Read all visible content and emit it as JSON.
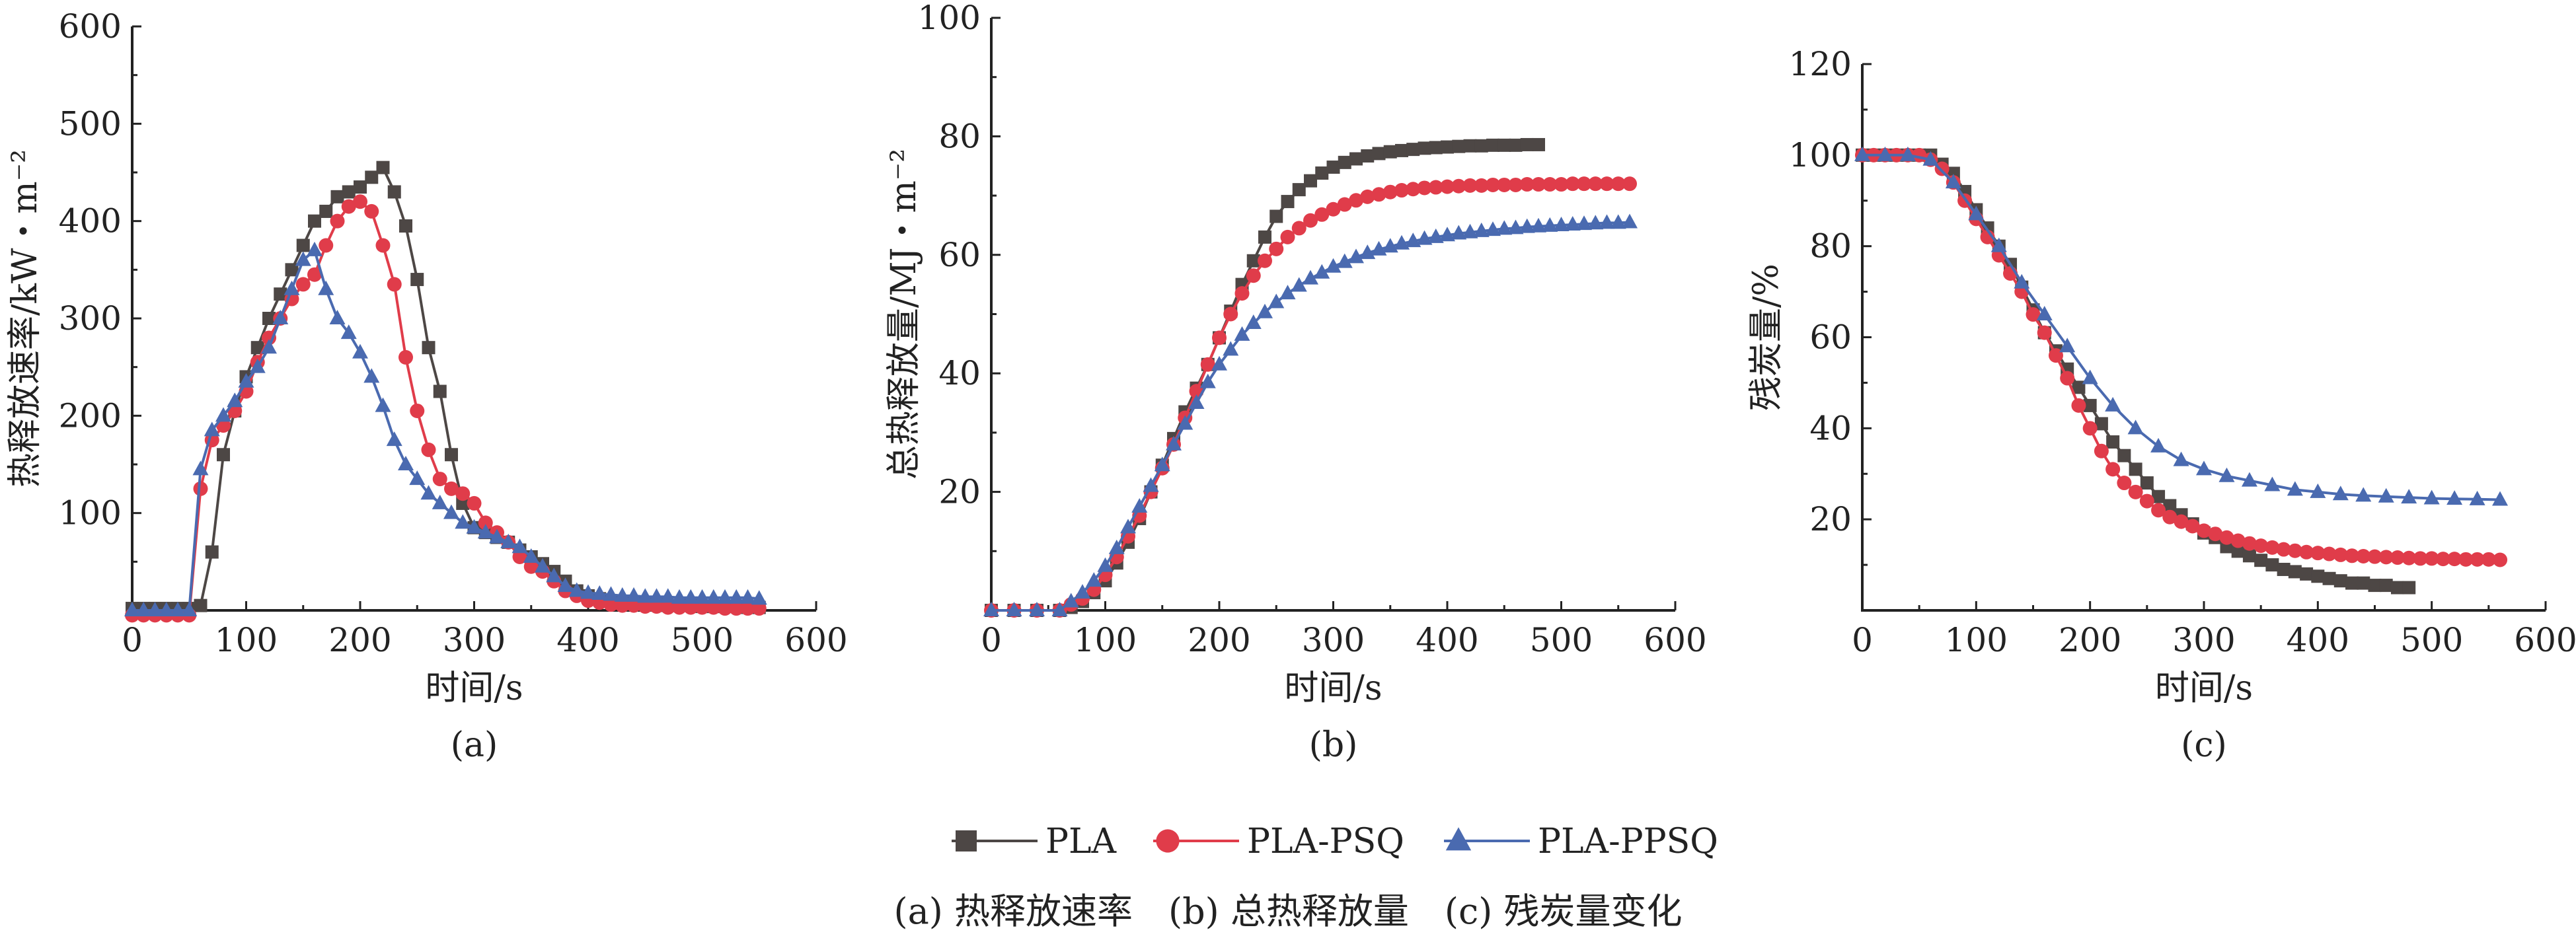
{
  "colors": {
    "PLA": "#4d4745",
    "PLA-PSQ": "#e03c4a",
    "PLA-PPSQ": "#4a6ab0",
    "axis": "#222222"
  },
  "legend": [
    {
      "name": "PLA",
      "marker": "square"
    },
    {
      "name": "PLA-PSQ",
      "marker": "circle"
    },
    {
      "name": "PLA-PPSQ",
      "marker": "triangle"
    }
  ],
  "caption": "(a) 热释放速率　(b) 总热释放量　(c) 残炭量变化",
  "chart_data": [
    {
      "type": "line",
      "panel_label": "(a)",
      "xlabel": "时间/s",
      "ylabel": "热释放速率/kW・m⁻²",
      "xlim": [
        0,
        600
      ],
      "ylim": [
        0,
        600
      ],
      "xticks": [
        "0",
        "100",
        "200",
        "300",
        "400",
        "500",
        "600"
      ],
      "yticks": [
        "100",
        "200",
        "300",
        "400",
        "500",
        "600"
      ],
      "series": [
        {
          "name": "PLA",
          "x": [
            0,
            10,
            20,
            30,
            40,
            50,
            60,
            70,
            80,
            90,
            100,
            110,
            120,
            130,
            140,
            150,
            160,
            170,
            180,
            190,
            200,
            210,
            220,
            230,
            240,
            250,
            260,
            270,
            280,
            290,
            300,
            310,
            320,
            330,
            340,
            350,
            360,
            370,
            380,
            390,
            400,
            410,
            420,
            430,
            440,
            450,
            460,
            470,
            480,
            490,
            500,
            510,
            520,
            530,
            540,
            550
          ],
          "y": [
            2,
            2,
            2,
            2,
            2,
            2,
            5,
            60,
            160,
            205,
            240,
            270,
            300,
            325,
            350,
            375,
            400,
            410,
            425,
            430,
            435,
            445,
            455,
            430,
            395,
            340,
            270,
            225,
            160,
            110,
            85,
            80,
            75,
            70,
            62,
            55,
            48,
            40,
            30,
            20,
            15,
            12,
            10,
            9,
            8,
            7,
            6,
            5,
            5,
            5,
            4,
            4,
            4,
            4,
            3,
            3
          ]
        },
        {
          "name": "PLA-PSQ",
          "x": [
            0,
            10,
            20,
            30,
            40,
            50,
            60,
            70,
            80,
            90,
            100,
            110,
            120,
            130,
            140,
            150,
            160,
            170,
            180,
            190,
            200,
            210,
            220,
            230,
            240,
            250,
            260,
            270,
            280,
            290,
            300,
            310,
            320,
            330,
            340,
            350,
            360,
            370,
            380,
            390,
            400,
            410,
            420,
            430,
            440,
            450,
            460,
            470,
            480,
            490,
            500,
            510,
            520,
            530,
            540,
            550
          ],
          "y": [
            -5,
            -5,
            -5,
            -5,
            -5,
            -5,
            125,
            175,
            190,
            205,
            225,
            255,
            280,
            300,
            320,
            335,
            345,
            375,
            400,
            415,
            420,
            410,
            375,
            335,
            260,
            205,
            165,
            135,
            125,
            120,
            110,
            90,
            80,
            70,
            55,
            45,
            40,
            30,
            20,
            15,
            10,
            8,
            6,
            5,
            5,
            4,
            4,
            3,
            3,
            3,
            3,
            3,
            2,
            2,
            2,
            2
          ]
        },
        {
          "name": "PLA-PPSQ",
          "x": [
            0,
            10,
            20,
            30,
            40,
            50,
            60,
            70,
            80,
            90,
            100,
            110,
            120,
            130,
            140,
            150,
            160,
            170,
            180,
            190,
            200,
            210,
            220,
            230,
            240,
            250,
            260,
            270,
            280,
            290,
            300,
            310,
            320,
            330,
            340,
            350,
            360,
            370,
            380,
            390,
            400,
            410,
            420,
            430,
            440,
            450,
            460,
            470,
            480,
            490,
            500,
            510,
            520,
            530,
            540,
            550
          ],
          "y": [
            0,
            0,
            0,
            0,
            0,
            0,
            145,
            185,
            200,
            215,
            235,
            250,
            270,
            300,
            330,
            360,
            370,
            330,
            300,
            285,
            265,
            240,
            210,
            175,
            150,
            135,
            120,
            110,
            100,
            90,
            85,
            80,
            75,
            70,
            65,
            55,
            45,
            35,
            25,
            20,
            18,
            17,
            16,
            15,
            15,
            14,
            14,
            14,
            13,
            13,
            13,
            13,
            13,
            13,
            13,
            12
          ]
        }
      ]
    },
    {
      "type": "line",
      "panel_label": "(b)",
      "xlabel": "时间/s",
      "ylabel": "总热释放量/MJ・m⁻²",
      "xlim": [
        0,
        600
      ],
      "ylim": [
        0,
        100
      ],
      "xticks": [
        "0",
        "100",
        "200",
        "300",
        "400",
        "500",
        "600"
      ],
      "yticks": [
        "20",
        "40",
        "60",
        "80",
        "100"
      ],
      "series": [
        {
          "name": "PLA",
          "x": [
            0,
            20,
            40,
            60,
            70,
            80,
            90,
            100,
            110,
            120,
            130,
            140,
            150,
            160,
            170,
            180,
            190,
            200,
            210,
            220,
            230,
            240,
            250,
            260,
            270,
            280,
            290,
            300,
            310,
            320,
            330,
            340,
            350,
            360,
            370,
            380,
            390,
            400,
            410,
            420,
            430,
            440,
            450,
            460,
            470,
            480
          ],
          "y": [
            0,
            0,
            0,
            0,
            0.5,
            1.5,
            3,
            5,
            8,
            11.5,
            15.5,
            20,
            24.5,
            29,
            33.5,
            37.5,
            41.5,
            46,
            50.5,
            55,
            59,
            63,
            66.5,
            69,
            71,
            72.5,
            73.8,
            74.8,
            75.6,
            76.2,
            76.7,
            77.1,
            77.4,
            77.6,
            77.8,
            78,
            78.1,
            78.2,
            78.3,
            78.4,
            78.4,
            78.5,
            78.5,
            78.5,
            78.6,
            78.6
          ]
        },
        {
          "name": "PLA-PSQ",
          "x": [
            0,
            20,
            40,
            60,
            70,
            80,
            90,
            100,
            110,
            120,
            130,
            140,
            150,
            160,
            170,
            180,
            190,
            200,
            210,
            220,
            230,
            240,
            250,
            260,
            270,
            280,
            290,
            300,
            310,
            320,
            330,
            340,
            350,
            360,
            370,
            380,
            390,
            400,
            410,
            420,
            430,
            440,
            450,
            460,
            470,
            480,
            490,
            500,
            510,
            520,
            530,
            540,
            550,
            560
          ],
          "y": [
            0,
            0,
            0,
            0,
            1,
            2,
            3.5,
            6,
            9,
            12.5,
            16,
            20,
            24,
            28,
            32.5,
            37,
            41.5,
            46,
            50,
            53.5,
            56.5,
            59,
            61,
            63,
            64.5,
            65.8,
            66.8,
            67.7,
            68.5,
            69.2,
            69.8,
            70.2,
            70.6,
            70.9,
            71.1,
            71.3,
            71.4,
            71.5,
            71.6,
            71.7,
            71.7,
            71.8,
            71.8,
            71.8,
            71.9,
            71.9,
            71.9,
            71.9,
            72,
            72,
            72,
            72,
            72,
            72
          ]
        },
        {
          "name": "PLA-PPSQ",
          "x": [
            0,
            20,
            40,
            60,
            70,
            80,
            90,
            100,
            110,
            120,
            130,
            140,
            150,
            160,
            170,
            180,
            190,
            200,
            210,
            220,
            230,
            240,
            250,
            260,
            270,
            280,
            290,
            300,
            310,
            320,
            330,
            340,
            350,
            360,
            370,
            380,
            390,
            400,
            410,
            420,
            430,
            440,
            450,
            460,
            470,
            480,
            490,
            500,
            510,
            520,
            530,
            540,
            550,
            560
          ],
          "y": [
            0,
            0,
            0,
            0,
            1.5,
            3,
            5,
            7.5,
            10.5,
            14,
            17.5,
            21,
            24.5,
            28,
            31.5,
            35,
            38.5,
            41.5,
            44,
            46.5,
            48.5,
            50.3,
            52,
            53.5,
            54.8,
            56,
            57,
            58,
            58.8,
            59.6,
            60.3,
            60.9,
            61.4,
            61.9,
            62.3,
            62.7,
            63,
            63.3,
            63.6,
            63.8,
            64,
            64.2,
            64.4,
            64.5,
            64.7,
            64.8,
            64.9,
            65,
            65.1,
            65.2,
            65.3,
            65.4,
            65.4,
            65.5
          ]
        }
      ]
    },
    {
      "type": "line",
      "panel_label": "(c)",
      "xlabel": "时间/s",
      "ylabel": "残炭量/%",
      "xlim": [
        0,
        600
      ],
      "ylim": [
        0,
        120
      ],
      "xticks": [
        "0",
        "100",
        "200",
        "300",
        "400",
        "500",
        "600"
      ],
      "yticks": [
        "20",
        "40",
        "60",
        "80",
        "100",
        "120"
      ],
      "series": [
        {
          "name": "PLA",
          "x": [
            0,
            10,
            20,
            30,
            40,
            50,
            60,
            70,
            80,
            90,
            100,
            110,
            120,
            130,
            140,
            150,
            160,
            170,
            180,
            190,
            200,
            210,
            220,
            230,
            240,
            250,
            260,
            270,
            280,
            290,
            300,
            310,
            320,
            330,
            340,
            350,
            360,
            370,
            380,
            390,
            400,
            410,
            420,
            430,
            440,
            450,
            460,
            470,
            480
          ],
          "y": [
            100,
            100,
            100,
            100,
            100,
            100,
            100,
            98,
            96,
            92,
            88,
            84,
            80,
            76,
            71,
            66,
            61,
            57,
            53,
            49,
            45,
            41,
            37,
            34,
            31,
            28,
            25,
            23,
            21,
            19,
            17,
            16,
            14,
            13,
            12,
            11,
            10,
            9,
            8.5,
            8,
            7.5,
            7,
            6.5,
            6,
            6,
            5.5,
            5.5,
            5,
            5
          ]
        },
        {
          "name": "PLA-PSQ",
          "x": [
            0,
            10,
            20,
            30,
            40,
            50,
            60,
            70,
            80,
            90,
            100,
            110,
            120,
            130,
            140,
            150,
            160,
            170,
            180,
            190,
            200,
            210,
            220,
            230,
            240,
            250,
            260,
            270,
            280,
            290,
            300,
            310,
            320,
            330,
            340,
            350,
            360,
            370,
            380,
            390,
            400,
            410,
            420,
            430,
            440,
            450,
            460,
            470,
            480,
            490,
            500,
            510,
            520,
            530,
            540,
            550,
            560
          ],
          "y": [
            100,
            100,
            100,
            100,
            100,
            100,
            99,
            97,
            94,
            90,
            86,
            82,
            78,
            74,
            70,
            65,
            61,
            56,
            51,
            45,
            40,
            35,
            31,
            28,
            26,
            24,
            22,
            20.5,
            19.5,
            18.5,
            17.5,
            16.8,
            16,
            15.3,
            14.7,
            14.2,
            13.8,
            13.4,
            13.1,
            12.8,
            12.6,
            12.4,
            12.2,
            12,
            11.9,
            11.8,
            11.7,
            11.6,
            11.5,
            11.4,
            11.4,
            11.3,
            11.3,
            11.2,
            11.2,
            11.2,
            11.1
          ]
        },
        {
          "name": "PLA-PPSQ",
          "x": [
            0,
            20,
            40,
            60,
            80,
            100,
            120,
            140,
            160,
            180,
            200,
            220,
            240,
            260,
            280,
            300,
            320,
            340,
            360,
            380,
            400,
            420,
            440,
            460,
            480,
            500,
            520,
            540,
            560
          ],
          "y": [
            100,
            100,
            100,
            99,
            94,
            87,
            80,
            72,
            65,
            58,
            51,
            45,
            40,
            36,
            33,
            31,
            29.5,
            28.5,
            27.5,
            26.5,
            26,
            25.5,
            25.2,
            25,
            24.8,
            24.6,
            24.5,
            24.4,
            24.3
          ]
        }
      ]
    }
  ]
}
